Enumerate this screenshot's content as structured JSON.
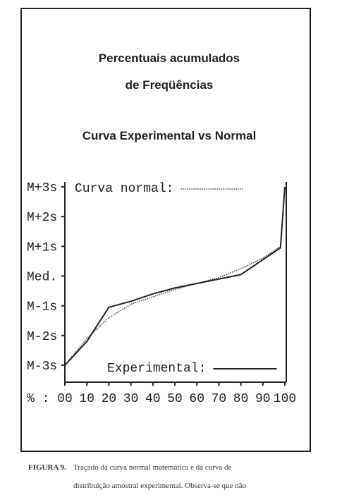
{
  "chart_data": {
    "type": "line",
    "title": "Percentuais acumulados",
    "title2": "de Freqüências",
    "subtitle": "Curva Experimental vs Normal",
    "x_label": "% :",
    "x": [
      0,
      10,
      20,
      30,
      40,
      50,
      60,
      70,
      80,
      90,
      98,
      100
    ],
    "series": [
      {
        "name": "Curva normal:",
        "color": "#444",
        "style": "dotted",
        "values": [
          -3,
          -2.1,
          -1.4,
          -0.95,
          -0.7,
          -0.45,
          -0.25,
          -0.05,
          0.25,
          0.6,
          1,
          3
        ]
      },
      {
        "name": "Experimental:",
        "color": "#222",
        "style": "solid",
        "values": [
          -3,
          -2.2,
          -1.05,
          -0.85,
          -0.6,
          -0.4,
          -0.25,
          -0.1,
          0.05,
          0.55,
          0.95,
          3
        ]
      }
    ],
    "xlim": [
      0,
      100
    ],
    "xticks": [
      {
        "value": 0,
        "label": "00"
      },
      10,
      20,
      30,
      40,
      50,
      60,
      70,
      80,
      90,
      100
    ],
    "ylim": [
      -3,
      3
    ],
    "yticks": [
      {
        "value": -3,
        "label": "M-3s"
      },
      {
        "value": -2,
        "label": "M-2s"
      },
      {
        "value": -1,
        "label": "M-1s"
      },
      {
        "value": 0,
        "label": "Med."
      },
      {
        "value": 1,
        "label": "M+1s"
      },
      {
        "value": 2,
        "label": "M+2s"
      },
      {
        "value": 3,
        "label": "M+3s"
      }
    ],
    "grid": false
  },
  "caption": {
    "label": "FIGURA 9.",
    "line1": "Traçado da curva normal matemática e da curva de",
    "line2": "distribuição amostral experimental. Observa-se que não"
  }
}
